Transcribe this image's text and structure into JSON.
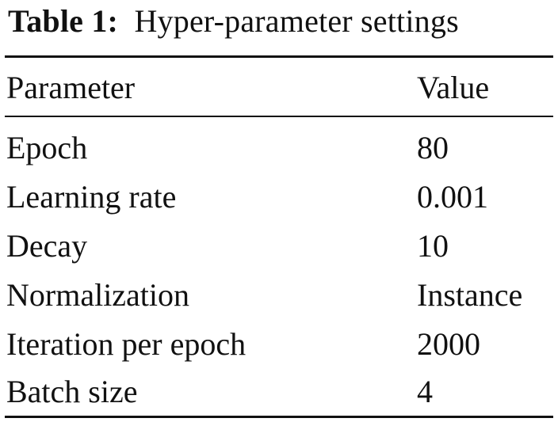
{
  "caption": {
    "label": "Table 1:",
    "text": "Hyper-parameter settings"
  },
  "table": {
    "headers": {
      "parameter": "Parameter",
      "value": "Value"
    },
    "rows": [
      {
        "parameter": "Epoch",
        "value": "80"
      },
      {
        "parameter": "Learning rate",
        "value": "0.001"
      },
      {
        "parameter": "Decay",
        "value": "10"
      },
      {
        "parameter": "Normalization",
        "value": "Instance"
      },
      {
        "parameter": "Iteration per epoch",
        "value": "2000"
      },
      {
        "parameter": "Batch size",
        "value": "4"
      }
    ]
  }
}
